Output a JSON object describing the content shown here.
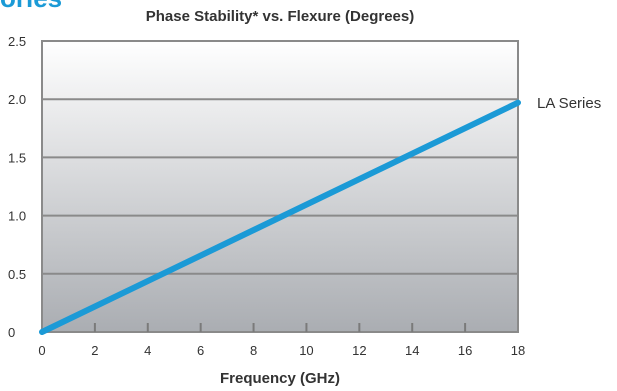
{
  "fragment_text": "ories",
  "chart_data": {
    "type": "line",
    "title": "Phase Stability* vs. Flexure (Degrees)",
    "xlabel": "Frequency (GHz)",
    "ylabel": "",
    "xlim": [
      0,
      18
    ],
    "ylim": [
      0,
      2.5
    ],
    "x_ticks": [
      "0",
      "2",
      "4",
      "6",
      "8",
      "10",
      "12",
      "14",
      "16",
      "18"
    ],
    "y_ticks": [
      "0",
      "0.5",
      "1.0",
      "1.5",
      "2.0",
      "2.5"
    ],
    "grid": "horizontal",
    "series": [
      {
        "name": "LA Series",
        "color": "#1b9ad6",
        "points": [
          {
            "x": 0,
            "y": 0
          },
          {
            "x": 18,
            "y": 1.97
          }
        ]
      }
    ]
  }
}
